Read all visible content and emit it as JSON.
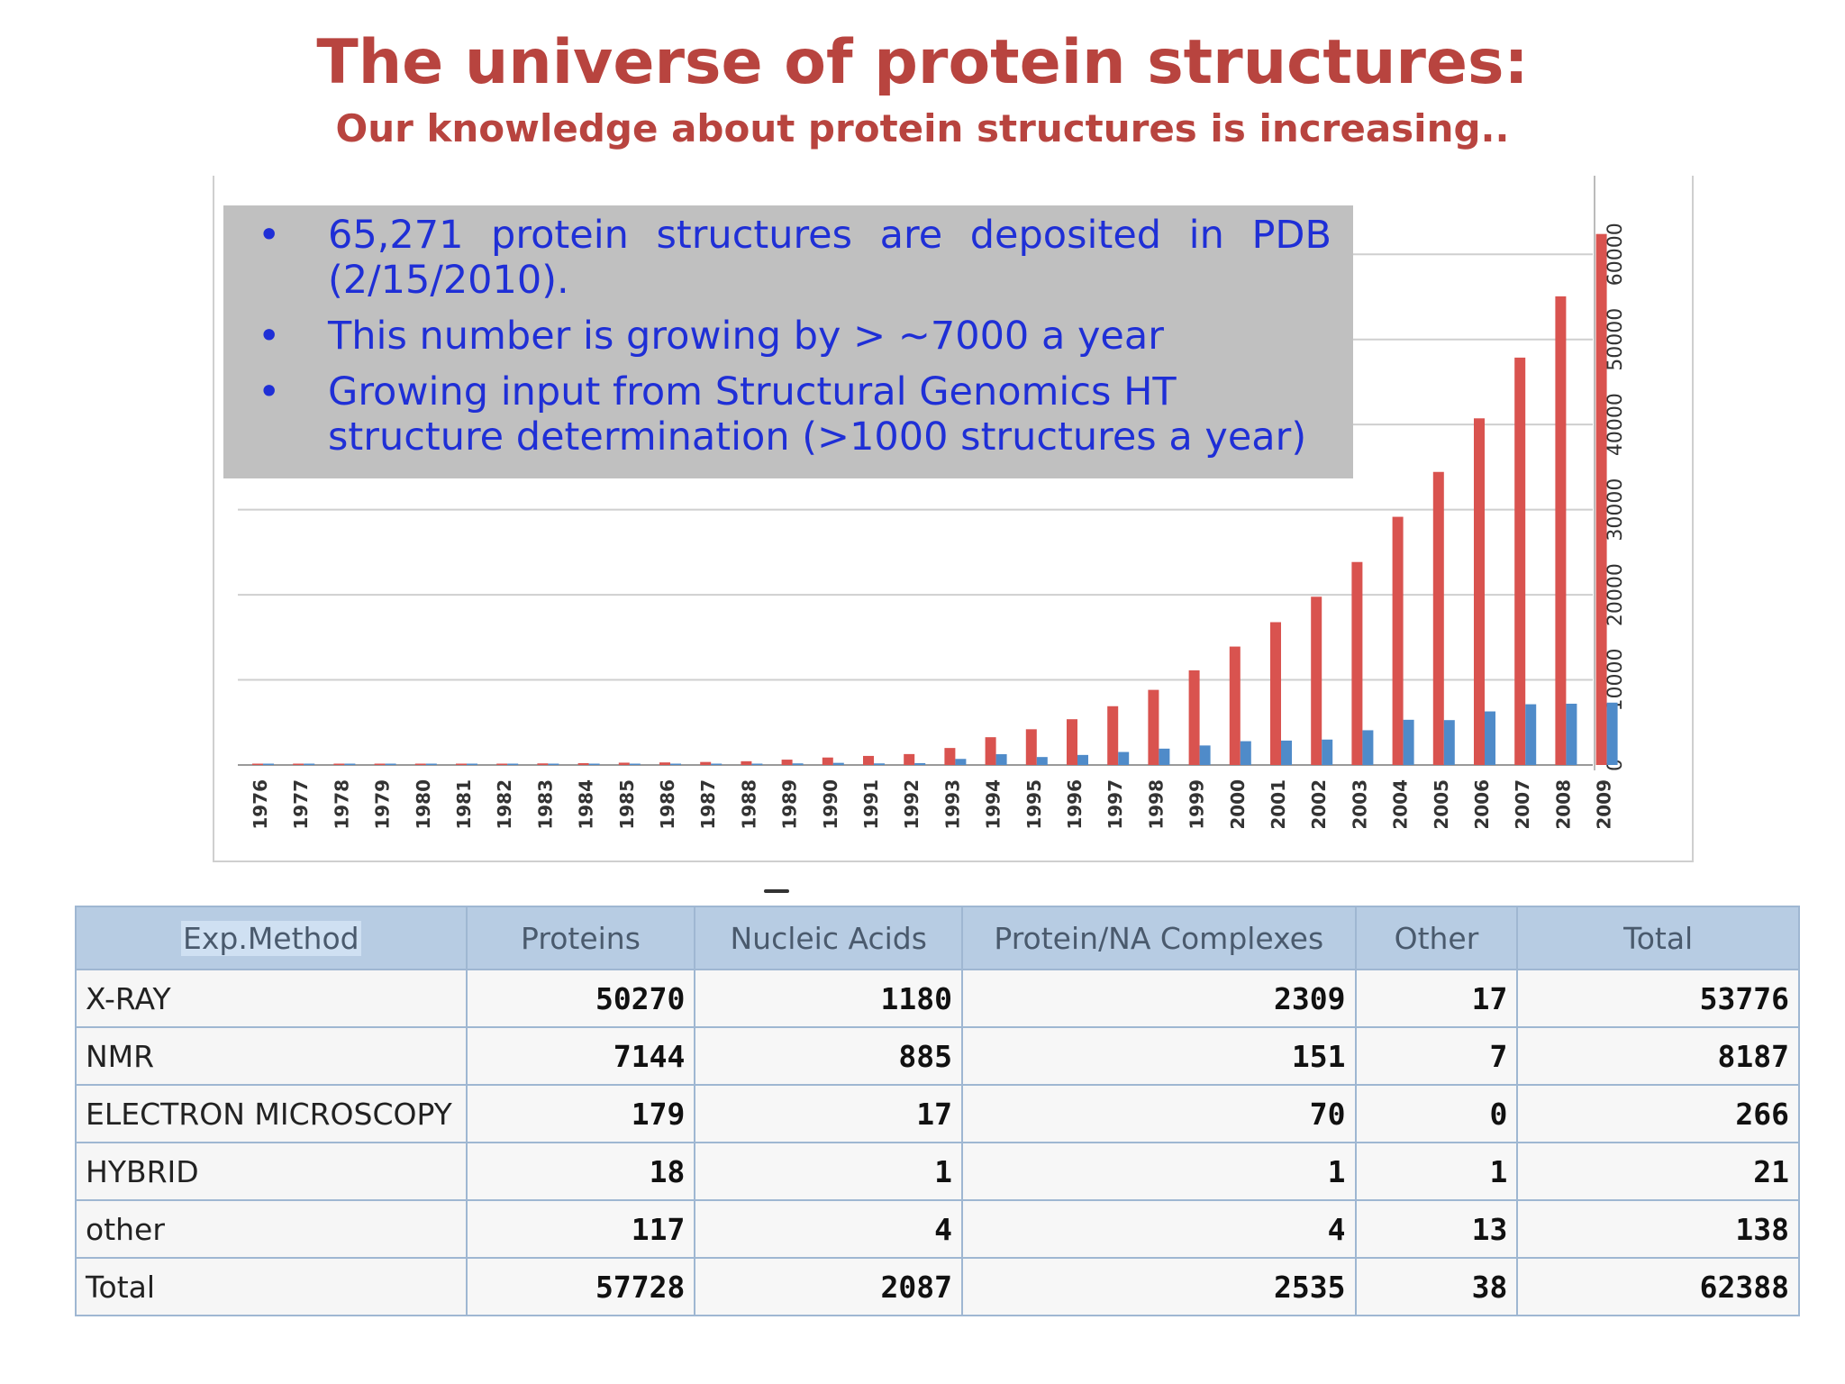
{
  "slide": {
    "title": "The universe of protein structures:",
    "subtitle": "Our knowledge about protein structures is increasing.."
  },
  "notes": [
    "65,271 protein structures are deposited in PDB (2/15/2010).",
    "This number is growing by > ~7000 a year",
    "Growing input from Structural Genomics HT structure determination (>1000 structures a year)"
  ],
  "bullet_glyph": "•",
  "chart_data": {
    "type": "bar",
    "title": "",
    "xlabel": "",
    "ylabel": "",
    "ylim": [
      0,
      65000
    ],
    "grid": true,
    "y_axis_side": "right",
    "y_ticks": [
      0,
      10000,
      20000,
      30000,
      40000,
      50000,
      60000
    ],
    "categories": [
      "1976",
      "1977",
      "1978",
      "1979",
      "1980",
      "1981",
      "1982",
      "1983",
      "1984",
      "1985",
      "1986",
      "1987",
      "1988",
      "1989",
      "1990",
      "1991",
      "1992",
      "1993",
      "1994",
      "1995",
      "1996",
      "1997",
      "1998",
      "1999",
      "2000",
      "2001",
      "2002",
      "2003",
      "2004",
      "2005",
      "2006",
      "2007",
      "2008",
      "2009"
    ],
    "series": [
      {
        "name": "",
        "color": "#d9534f",
        "values": [
          13,
          36,
          58,
          80,
          80,
          106,
          146,
          186,
          211,
          271,
          301,
          354,
          441,
          629,
          878,
          1065,
          1283,
          1997,
          3264,
          4199,
          5378,
          6906,
          8826,
          11117,
          13913,
          16779,
          19766,
          23848,
          29159,
          34432,
          40727,
          47863,
          55061,
          62388
        ]
      },
      {
        "name": "",
        "color": "#4f8bc9",
        "values": [
          13,
          23,
          22,
          22,
          0,
          26,
          40,
          40,
          25,
          60,
          30,
          53,
          87,
          188,
          249,
          187,
          218,
          714,
          1267,
          935,
          1179,
          1528,
          1920,
          2291,
          2796,
          2866,
          2987,
          4082,
          5311,
          5273,
          6295,
          7136,
          7198,
          7327
        ]
      }
    ]
  },
  "table": {
    "headers": [
      "Exp.Method",
      "Proteins",
      "Nucleic Acids",
      "Protein/NA Complexes",
      "Other",
      "Total"
    ],
    "rows": [
      [
        "X-RAY",
        "50270",
        "1180",
        "2309",
        "17",
        "53776"
      ],
      [
        "NMR",
        "7144",
        "885",
        "151",
        "7",
        "8187"
      ],
      [
        "ELECTRON MICROSCOPY",
        "179",
        "17",
        "70",
        "0",
        "266"
      ],
      [
        "HYBRID",
        "18",
        "1",
        "1",
        "1",
        "21"
      ],
      [
        "other",
        "117",
        "4",
        "4",
        "13",
        "138"
      ],
      [
        "Total",
        "57728",
        "2087",
        "2535",
        "38",
        "62388"
      ]
    ]
  }
}
